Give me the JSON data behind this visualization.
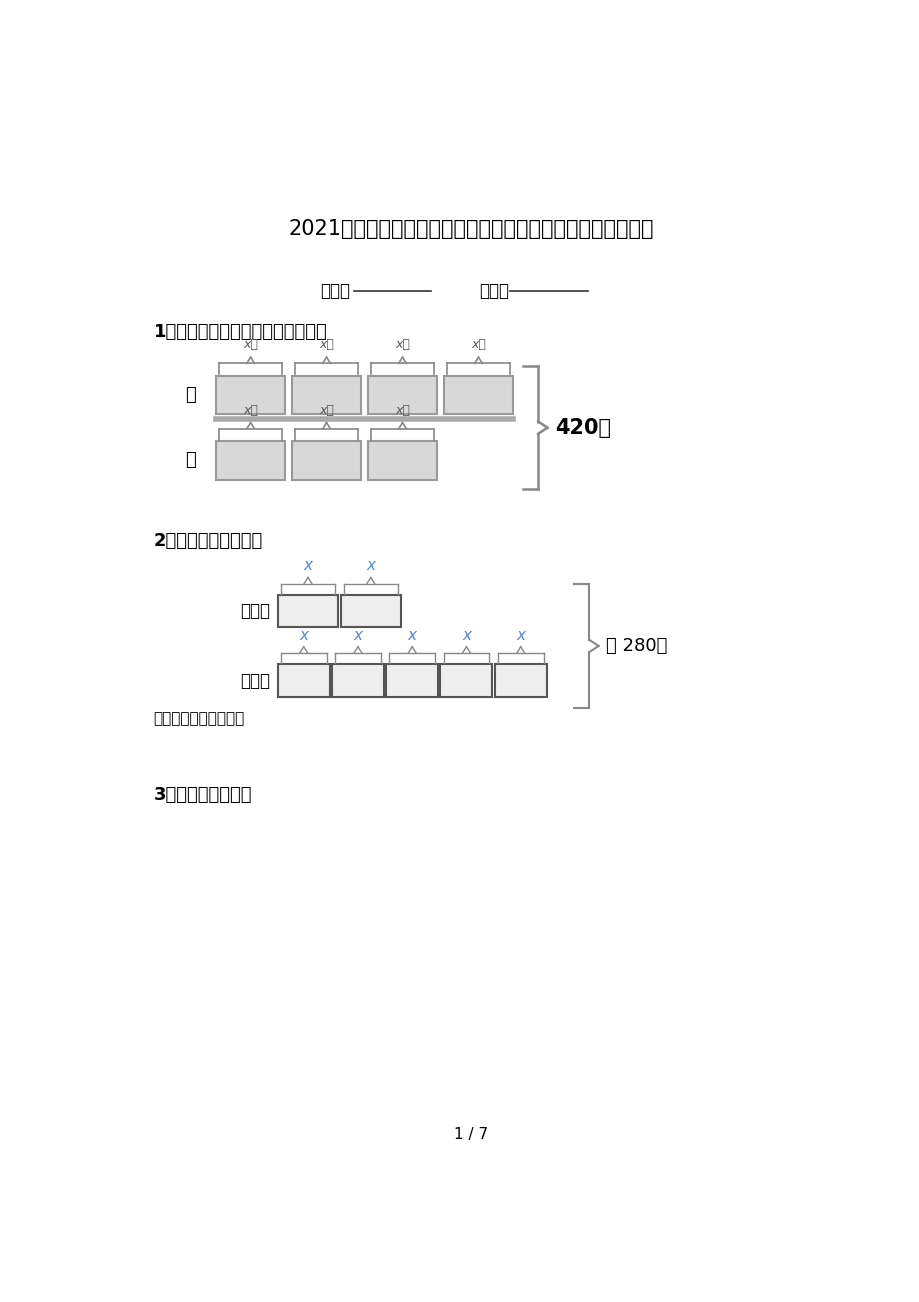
{
  "title": "2021五年级数学上学期看图列方程计算课后辅导专项练习精编",
  "title_fontsize": 15,
  "bg_color": "#ffffff",
  "text_color": "#000000",
  "q1_label": "1．看图列方程，并求出方程的解。",
  "q2_label": "2．看图列方程求解。",
  "q3_label": "3．看图列式计算。",
  "class_label": "班级：",
  "name_label": "姓名：",
  "page_label": "1 / 7",
  "q2_total": "共 280棵",
  "q2_question": "柏树和松树各多少棵？",
  "q1_total": "420只",
  "q1_chicken_label": "鸡",
  "q1_duck_label": "鸭",
  "q2_cypress_label": "柏树：",
  "q2_pine_label": "松树："
}
